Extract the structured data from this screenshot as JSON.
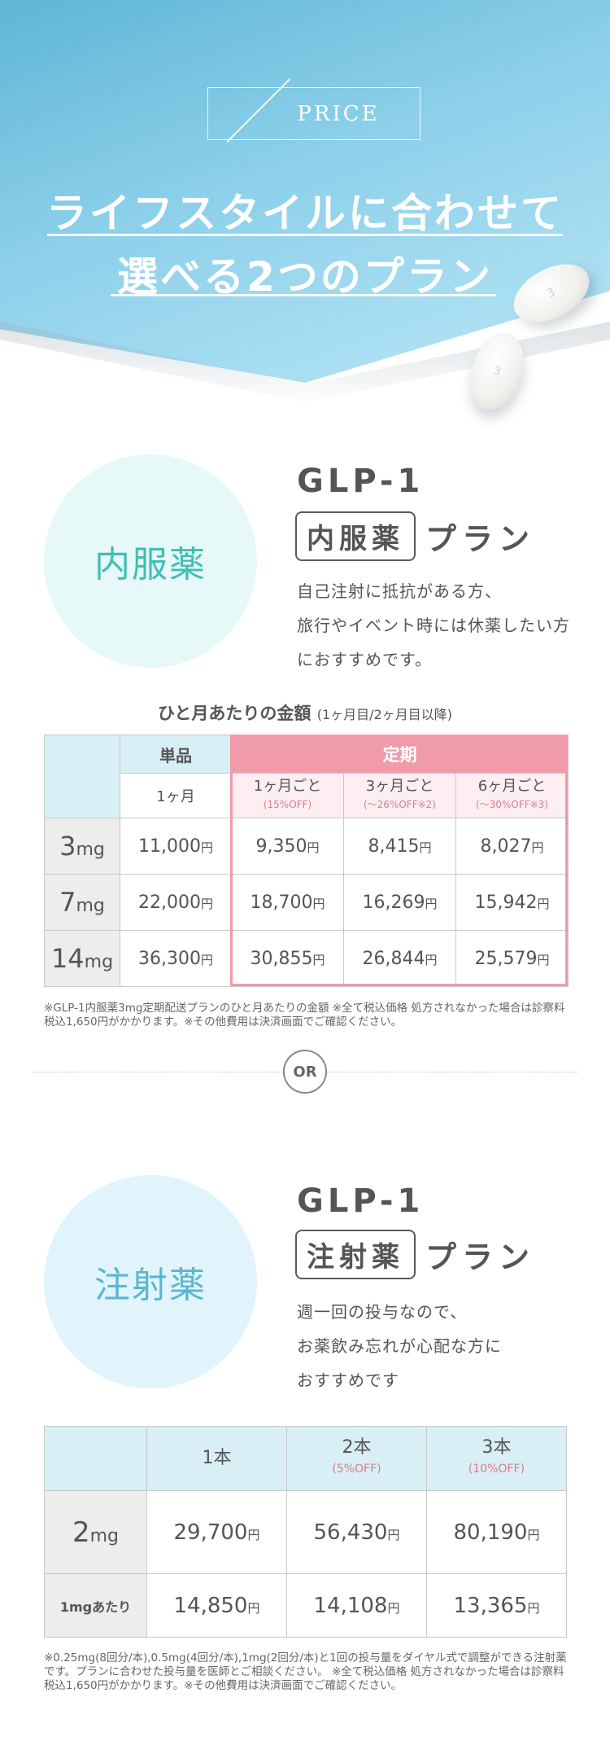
{
  "hero": {
    "price_label": "PRICE",
    "title_line1": "ライフスタイルに合わせて",
    "title_line2": "選べる2つのプラン",
    "pill_mark": "3"
  },
  "oral": {
    "circle_label": "内服薬",
    "glp": "GLP-1",
    "name": "内服薬",
    "suffix": "プラン",
    "desc": [
      "自己注射に抵抗がある方、",
      "旅行やイベント時には休薬したい方",
      "におすすめです。"
    ],
    "table_caption": "ひと月あたりの金額",
    "table_caption_small": "(1ヶ月目/2ヶ月目以降)",
    "header_single": "単品",
    "header_single_sub": "1ヶ月",
    "header_teiki": "定期",
    "teiki_cols": [
      {
        "label": "1ヶ月ごと",
        "discount": "(15%OFF)"
      },
      {
        "label": "3ヶ月ごと",
        "discount": "(〜26%OFF※2)"
      },
      {
        "label": "6ヶ月ごと",
        "discount": "(〜30%OFF※3)"
      }
    ],
    "yen": "円",
    "rows": [
      {
        "dose": "3",
        "unit": "mg",
        "values": [
          "11,000",
          "9,350",
          "8,415",
          "8,027"
        ]
      },
      {
        "dose": "7",
        "unit": "mg",
        "values": [
          "22,000",
          "18,700",
          "16,269",
          "15,942"
        ]
      },
      {
        "dose": "14",
        "unit": "mg",
        "values": [
          "36,300",
          "30,855",
          "26,844",
          "25,579"
        ]
      }
    ],
    "note": "※GLP-1内服薬3mg定期配送プランのひと月あたりの金額 ※全て税込価格 処方されなかった場合は診察料税込1,650円がかかります。※その他費用は決済画面でご確認ください。"
  },
  "or_label": "OR",
  "injection": {
    "circle_label": "注射薬",
    "glp": "GLP-1",
    "name": "注射薬",
    "suffix": "プラン",
    "desc": [
      "週一回の投与なので、",
      "お薬飲み忘れが心配な方に",
      "おすすめです"
    ],
    "cols": [
      {
        "label": "1本",
        "discount": ""
      },
      {
        "label": "2本",
        "discount": "(5%OFF)"
      },
      {
        "label": "3本",
        "discount": "(10%OFF)"
      }
    ],
    "yen": "円",
    "row_dose": "2",
    "row_unit": "mg",
    "row_values": [
      "29,700",
      "56,430",
      "80,190"
    ],
    "per_mg_label": "1mgあたり",
    "per_mg_values": [
      "14,850",
      "14,108",
      "13,365"
    ],
    "note": "※0.25mg(8回分/本),0.5mg(4回分/本),1mg(2回分/本)と1回の投与量をダイヤル式で調整ができる注射薬です。プランに合わせた投与量を医師とご相談ください。 ※全て税込価格 処方されなかった場合は診察料税込1,650円がかかります。※その他費用は決済画面でご確認ください。"
  },
  "colors": {
    "oral_circle_bg": "#e6f8f7",
    "oral_circle_text": "#3fbfb5",
    "inj_circle_bg": "#e1f4fb",
    "inj_circle_text": "#5ab6d2",
    "teiki_pink": "#f19aa9",
    "single_blue": "#d7eff5"
  }
}
